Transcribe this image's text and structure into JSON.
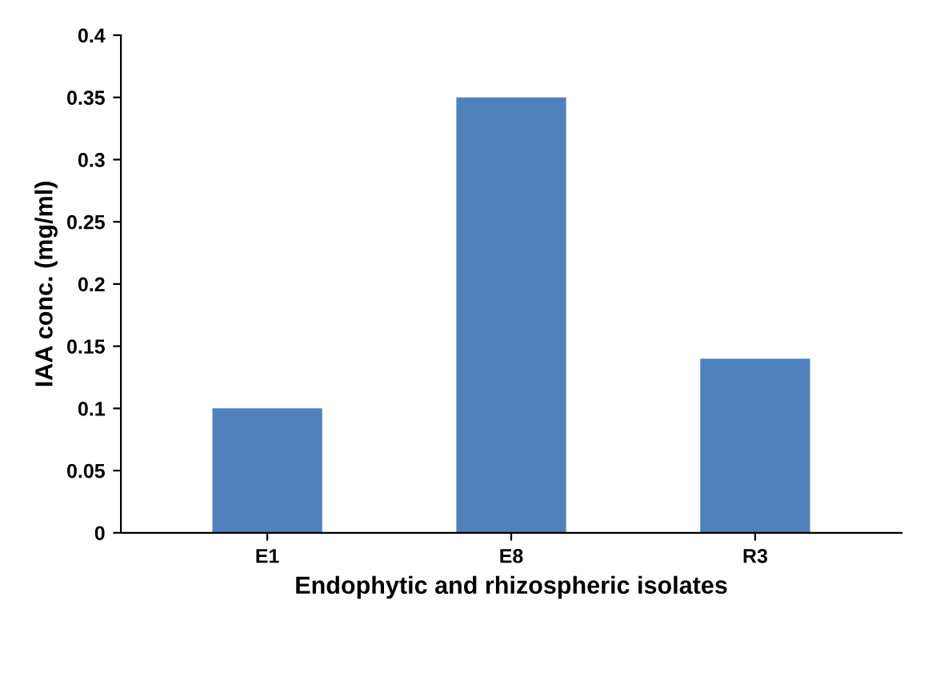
{
  "chart_data": {
    "type": "bar",
    "xlabel": "Endophytic and rhizospheric isolates",
    "ylabel": "IAA conc. (mg/ml)",
    "categories": [
      "E1",
      "E8",
      "R3"
    ],
    "values": [
      0.1,
      0.35,
      0.14
    ],
    "color": "#4f81bd",
    "ylim": [
      0,
      0.4
    ],
    "yticks": [
      {
        "value": 0,
        "label": "0"
      },
      0.05,
      0.1,
      0.15,
      0.2,
      0.25,
      0.3,
      0.35,
      0.4
    ],
    "grid": false
  }
}
